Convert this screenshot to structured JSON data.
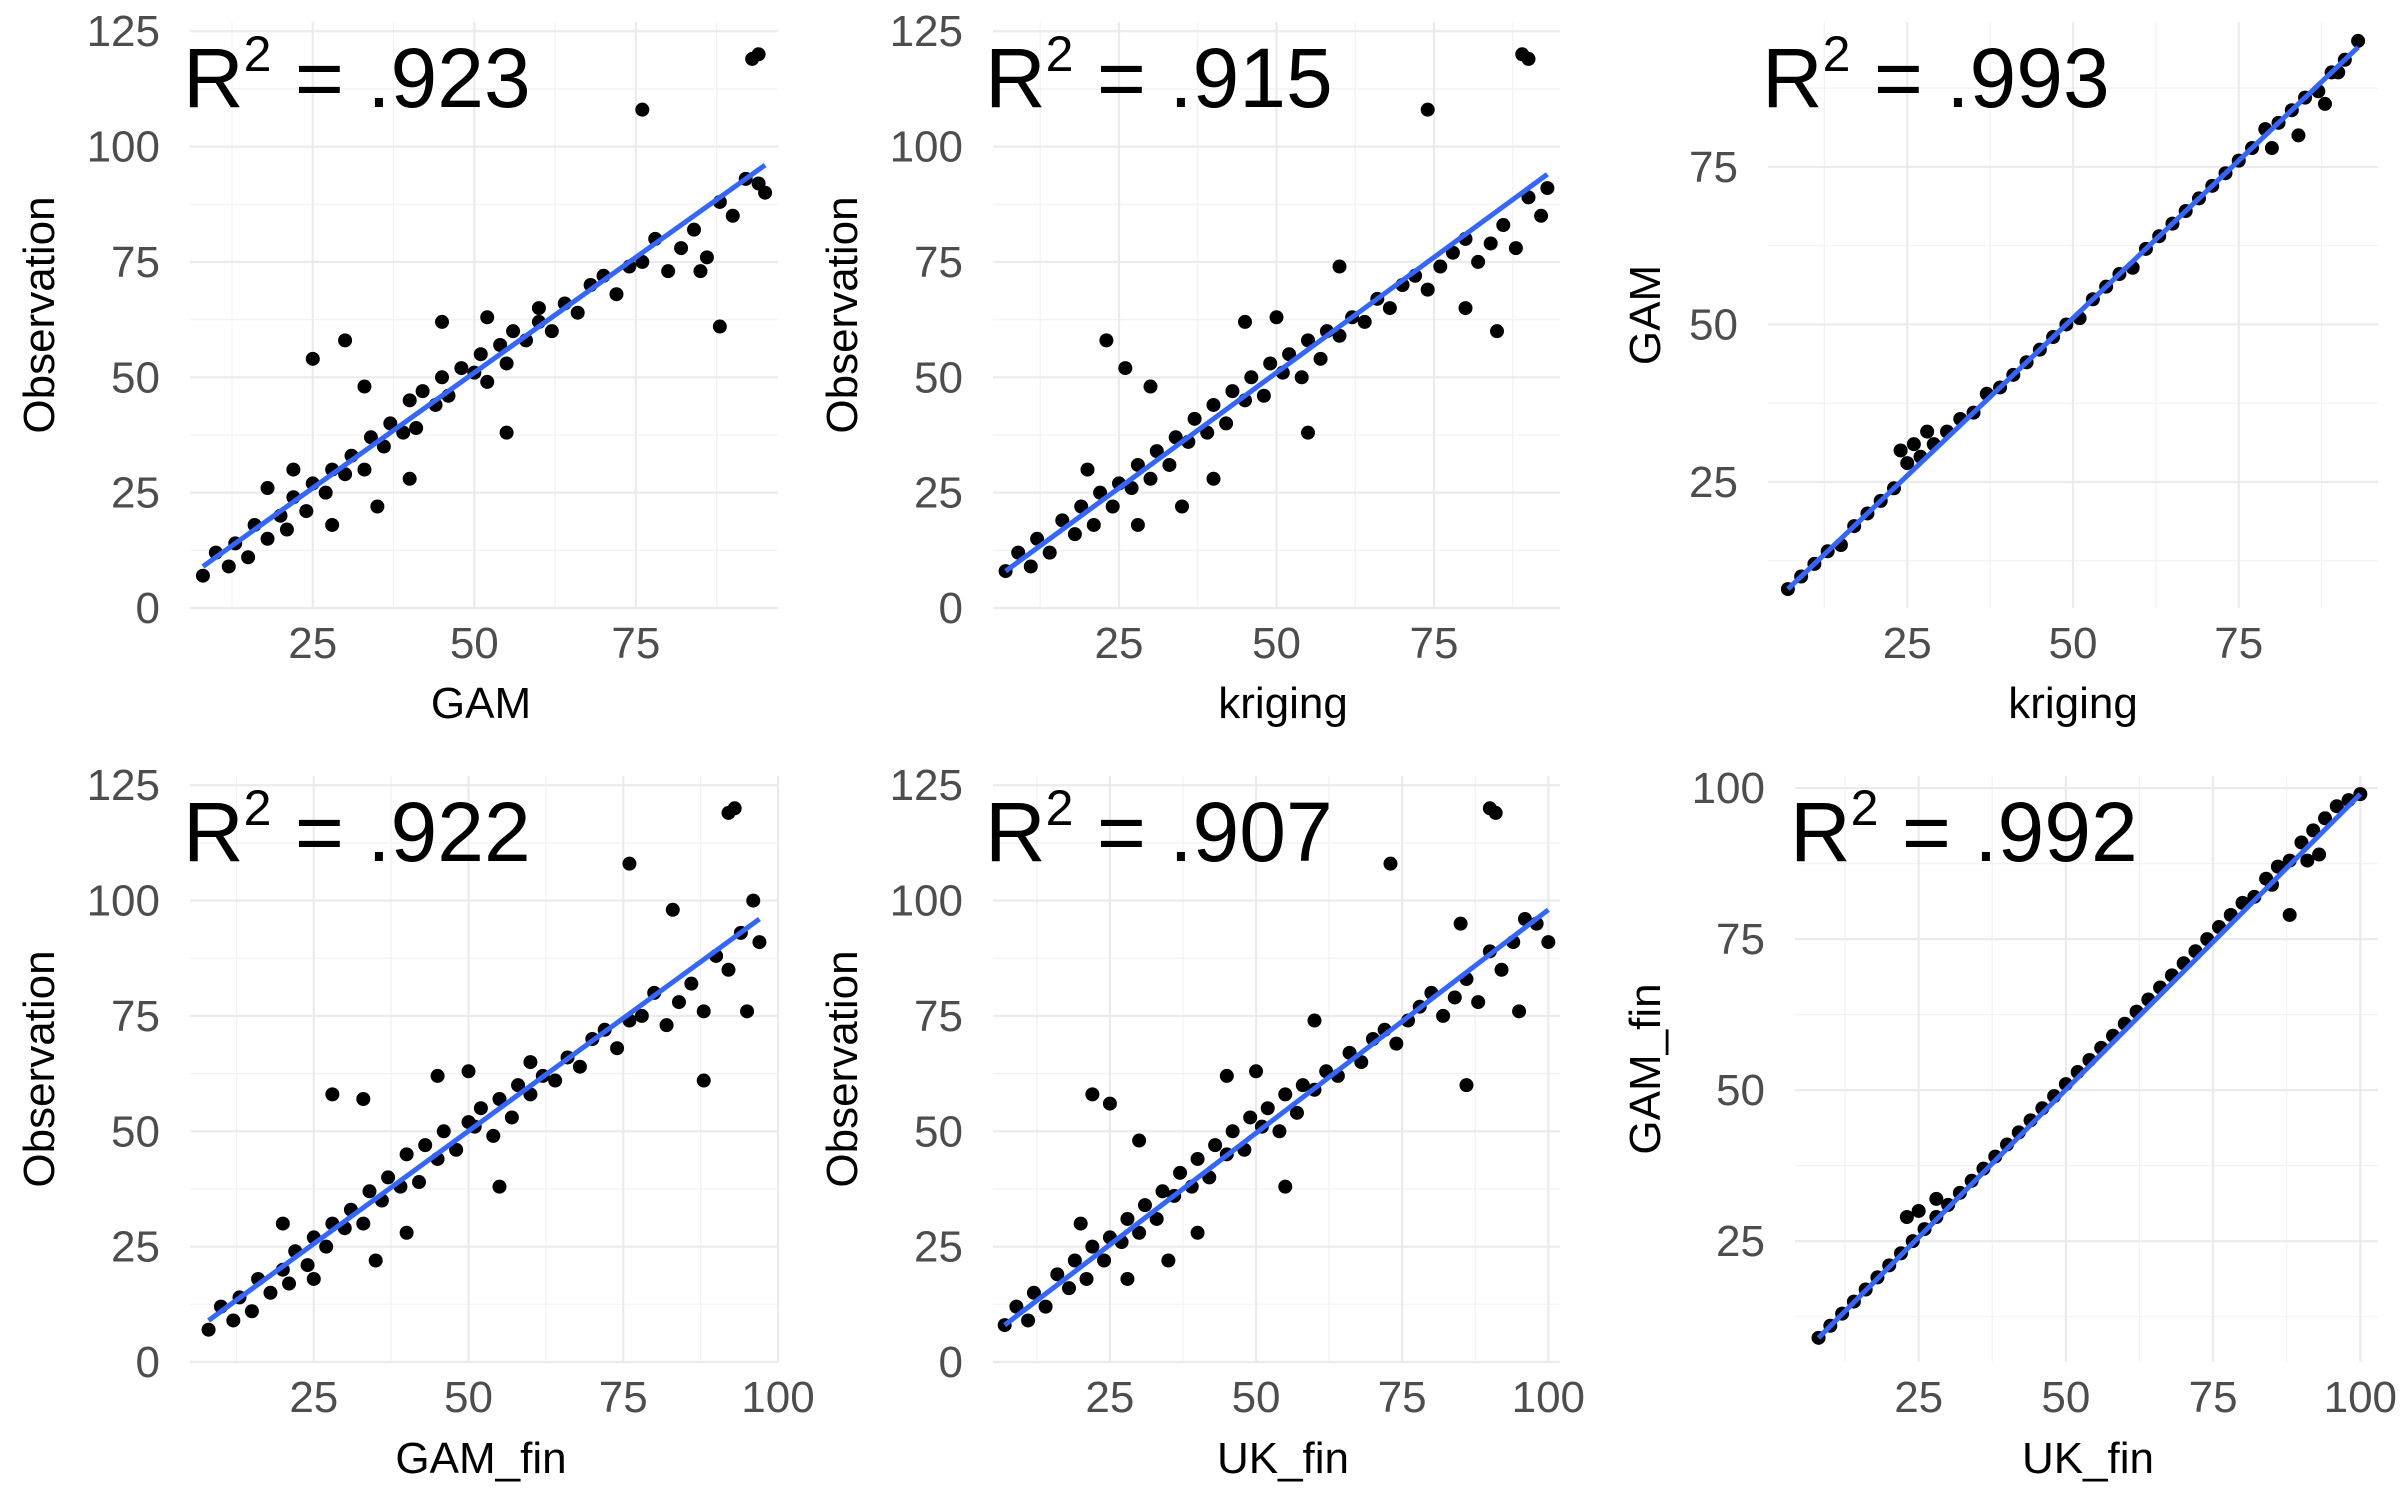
{
  "chart_data": [
    {
      "type": "scatter",
      "xlabel": "GAM",
      "ylabel": "Observation",
      "annotation": {
        "prefix": "R",
        "superscript": "2",
        "suffix": " = .923"
      },
      "xlim": [
        6,
        97
      ],
      "ylim": [
        0,
        127
      ],
      "xticks": [
        25,
        50,
        75
      ],
      "yticks": [
        0,
        25,
        50,
        75,
        100,
        125
      ],
      "fit_line": {
        "x": [
          8,
          95
        ],
        "y": [
          9,
          96
        ]
      },
      "points": {
        "x": [
          8,
          10,
          12,
          13,
          15,
          16,
          18,
          20,
          21,
          22,
          24,
          25,
          27,
          28,
          30,
          31,
          33,
          34,
          36,
          37,
          39,
          40,
          41,
          42,
          44,
          45,
          46,
          48,
          50,
          51,
          52,
          54,
          55,
          56,
          58,
          60,
          62,
          64,
          66,
          68,
          70,
          72,
          74,
          76,
          78,
          80,
          82,
          84,
          86,
          88,
          90,
          92,
          94,
          95,
          25,
          30,
          60,
          76,
          93,
          94,
          88,
          85,
          35,
          28,
          22,
          18,
          45,
          55,
          52,
          40,
          33
        ],
        "y": [
          7,
          12,
          9,
          14,
          11,
          18,
          15,
          20,
          17,
          24,
          21,
          27,
          25,
          30,
          29,
          33,
          30,
          37,
          35,
          40,
          38,
          45,
          39,
          47,
          44,
          50,
          46,
          52,
          51,
          55,
          49,
          57,
          53,
          60,
          58,
          62,
          60,
          66,
          64,
          70,
          72,
          68,
          74,
          75,
          80,
          73,
          78,
          82,
          76,
          88,
          85,
          93,
          92,
          90,
          54,
          58,
          65,
          108,
          119,
          120,
          61,
          73,
          22,
          18,
          30,
          26,
          62,
          38,
          63,
          28,
          48
        ]
      }
    },
    {
      "type": "scatter",
      "xlabel": "kriging",
      "ylabel": "Observation",
      "annotation": {
        "prefix": "R",
        "superscript": "2",
        "suffix": " = .915"
      },
      "xlim": [
        5,
        95
      ],
      "ylim": [
        0,
        127
      ],
      "xticks": [
        25,
        50,
        75
      ],
      "yticks": [
        0,
        25,
        50,
        75,
        100,
        125
      ],
      "fit_line": {
        "x": [
          7,
          93
        ],
        "y": [
          8,
          94
        ]
      },
      "points": {
        "x": [
          7,
          9,
          11,
          12,
          14,
          16,
          18,
          19,
          21,
          22,
          24,
          25,
          27,
          28,
          30,
          31,
          33,
          34,
          36,
          37,
          39,
          40,
          42,
          43,
          45,
          46,
          48,
          49,
          51,
          52,
          54,
          55,
          57,
          58,
          60,
          62,
          64,
          66,
          68,
          70,
          72,
          74,
          76,
          78,
          80,
          82,
          84,
          86,
          88,
          90,
          92,
          93,
          23,
          26,
          30,
          74,
          89,
          90,
          85,
          60,
          80,
          35,
          28,
          20,
          45,
          55,
          50,
          40
        ],
        "y": [
          8,
          12,
          9,
          15,
          12,
          19,
          16,
          22,
          18,
          25,
          22,
          27,
          26,
          31,
          28,
          34,
          31,
          37,
          36,
          41,
          38,
          44,
          40,
          47,
          45,
          50,
          46,
          53,
          51,
          55,
          50,
          58,
          54,
          60,
          59,
          63,
          62,
          67,
          65,
          70,
          72,
          69,
          74,
          77,
          80,
          75,
          79,
          83,
          78,
          89,
          85,
          91,
          58,
          52,
          48,
          108,
          120,
          119,
          60,
          74,
          65,
          22,
          18,
          30,
          62,
          38,
          63,
          28
        ]
      }
    },
    {
      "type": "scatter",
      "xlabel": "kriging",
      "ylabel": "GAM",
      "annotation": {
        "prefix": "R",
        "superscript": "2",
        "suffix": " = .993"
      },
      "xlim": [
        4,
        96
      ],
      "ylim": [
        5,
        98
      ],
      "xticks": [
        25,
        50,
        75
      ],
      "yticks": [
        25,
        50,
        75
      ],
      "fit_line": {
        "x": [
          7,
          93
        ],
        "y": [
          8,
          94
        ]
      },
      "points": {
        "x": [
          7,
          9,
          11,
          13,
          15,
          17,
          19,
          21,
          23,
          25,
          27,
          29,
          31,
          33,
          35,
          37,
          39,
          41,
          43,
          45,
          47,
          49,
          51,
          53,
          55,
          57,
          59,
          61,
          63,
          65,
          67,
          69,
          71,
          73,
          75,
          77,
          79,
          81,
          83,
          85,
          87,
          89,
          91,
          93,
          24,
          26,
          28,
          80,
          84,
          88,
          90
        ],
        "y": [
          8,
          10,
          12,
          14,
          15,
          18,
          20,
          22,
          24,
          28,
          29,
          31,
          33,
          35,
          36,
          39,
          40,
          42,
          44,
          46,
          48,
          50,
          51,
          54,
          56,
          58,
          59,
          62,
          64,
          66,
          68,
          70,
          72,
          74,
          76,
          78,
          81,
          82,
          84,
          86,
          87,
          90,
          92,
          95,
          30,
          31,
          33,
          78,
          80,
          85,
          90
        ]
      }
    },
    {
      "type": "scatter",
      "xlabel": "GAM_fin",
      "ylabel": "Observation",
      "annotation": {
        "prefix": "R",
        "superscript": "2",
        "suffix": " = .922"
      },
      "xlim": [
        5,
        100
      ],
      "ylim": [
        0,
        127
      ],
      "xticks": [
        25,
        50,
        75,
        100
      ],
      "yticks": [
        0,
        25,
        50,
        75,
        100,
        125
      ],
      "fit_line": {
        "x": [
          8,
          97
        ],
        "y": [
          9,
          96
        ]
      },
      "points": {
        "x": [
          8,
          10,
          12,
          13,
          15,
          16,
          18,
          20,
          21,
          22,
          24,
          25,
          27,
          28,
          30,
          31,
          33,
          34,
          36,
          37,
          39,
          40,
          42,
          43,
          45,
          46,
          48,
          50,
          51,
          52,
          54,
          55,
          57,
          58,
          60,
          62,
          64,
          66,
          68,
          70,
          72,
          74,
          76,
          78,
          80,
          82,
          84,
          86,
          88,
          90,
          92,
          94,
          96,
          97,
          28,
          33,
          76,
          92,
          93,
          95,
          88,
          60,
          83,
          35,
          25,
          20,
          45,
          55,
          50,
          40
        ],
        "y": [
          7,
          12,
          9,
          14,
          11,
          18,
          15,
          20,
          17,
          24,
          21,
          27,
          25,
          30,
          29,
          33,
          30,
          37,
          35,
          40,
          38,
          45,
          39,
          47,
          44,
          50,
          46,
          52,
          51,
          55,
          49,
          57,
          53,
          60,
          58,
          62,
          61,
          66,
          64,
          70,
          72,
          68,
          74,
          75,
          80,
          73,
          78,
          82,
          76,
          88,
          85,
          93,
          100,
          91,
          58,
          57,
          108,
          119,
          120,
          76,
          61,
          65,
          98,
          22,
          18,
          30,
          62,
          38,
          63,
          28
        ]
      }
    },
    {
      "type": "scatter",
      "xlabel": "UK_fin",
      "ylabel": "Observation",
      "annotation": {
        "prefix": "R",
        "superscript": "2",
        "suffix": " = .907"
      },
      "xlim": [
        5,
        102
      ],
      "ylim": [
        0,
        127
      ],
      "xticks": [
        25,
        50,
        75,
        100
      ],
      "yticks": [
        0,
        25,
        50,
        75,
        100,
        125
      ],
      "fit_line": {
        "x": [
          7,
          100
        ],
        "y": [
          8,
          98
        ]
      },
      "points": {
        "x": [
          7,
          9,
          11,
          12,
          14,
          16,
          18,
          19,
          21,
          22,
          24,
          25,
          27,
          28,
          30,
          31,
          33,
          34,
          36,
          37,
          39,
          40,
          42,
          43,
          45,
          46,
          48,
          49,
          51,
          52,
          54,
          55,
          57,
          58,
          60,
          62,
          64,
          66,
          68,
          70,
          72,
          74,
          76,
          78,
          80,
          82,
          84,
          86,
          88,
          90,
          92,
          94,
          96,
          98,
          100,
          22,
          25,
          30,
          73,
          90,
          91,
          95,
          86,
          60,
          85,
          35,
          28,
          20,
          45,
          55,
          50,
          40
        ],
        "y": [
          8,
          12,
          9,
          15,
          12,
          19,
          16,
          22,
          18,
          25,
          22,
          27,
          26,
          31,
          28,
          34,
          31,
          37,
          36,
          41,
          38,
          44,
          40,
          47,
          45,
          50,
          46,
          53,
          51,
          55,
          50,
          58,
          54,
          60,
          59,
          63,
          62,
          67,
          65,
          70,
          72,
          69,
          74,
          77,
          80,
          75,
          79,
          83,
          78,
          89,
          85,
          91,
          96,
          95,
          91,
          58,
          56,
          48,
          108,
          120,
          119,
          76,
          60,
          74,
          95,
          22,
          18,
          30,
          62,
          38,
          63,
          28
        ]
      }
    },
    {
      "type": "scatter",
      "xlabel": "UK_fin",
      "ylabel": "GAM_fin",
      "annotation": {
        "prefix": "R",
        "superscript": "2",
        "suffix": " = .992"
      },
      "xlim": [
        4,
        103
      ],
      "ylim": [
        5,
        102
      ],
      "xticks": [
        25,
        50,
        75,
        100
      ],
      "yticks": [
        25,
        50,
        75,
        100
      ],
      "fit_line": {
        "x": [
          8,
          100
        ],
        "y": [
          9,
          99
        ]
      },
      "points": {
        "x": [
          8,
          10,
          12,
          14,
          16,
          18,
          20,
          22,
          24,
          26,
          28,
          30,
          32,
          34,
          36,
          38,
          40,
          42,
          44,
          46,
          48,
          50,
          52,
          54,
          56,
          58,
          60,
          62,
          64,
          66,
          68,
          70,
          72,
          74,
          76,
          78,
          80,
          82,
          84,
          86,
          88,
          90,
          92,
          94,
          96,
          98,
          100,
          23,
          25,
          28,
          85,
          88,
          91,
          93
        ],
        "y": [
          9,
          11,
          13,
          15,
          17,
          19,
          21,
          23,
          25,
          27,
          29,
          31,
          33,
          35,
          37,
          39,
          41,
          43,
          45,
          47,
          49,
          51,
          53,
          55,
          57,
          59,
          61,
          63,
          65,
          67,
          69,
          71,
          73,
          75,
          77,
          79,
          81,
          82,
          85,
          87,
          88,
          91,
          93,
          95,
          97,
          98,
          99,
          29,
          30,
          32,
          84,
          79,
          88,
          89
        ]
      }
    }
  ]
}
